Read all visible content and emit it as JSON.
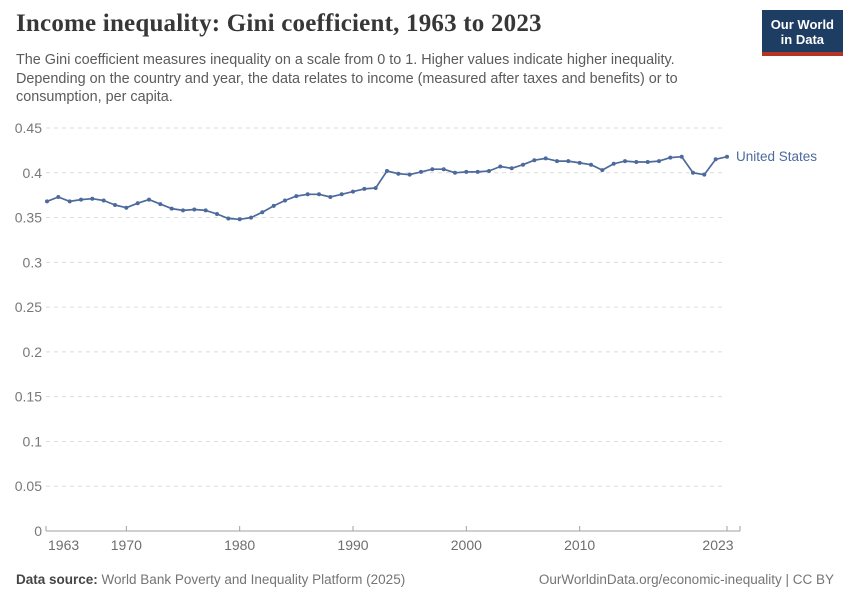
{
  "header": {
    "title": "Income inequality: Gini coefficient, 1963 to 2023",
    "subtitle": "The Gini coefficient measures inequality on a scale from 0 to 1. Higher values indicate higher inequality. Depending on the country and year, the data relates to income (measured after taxes and benefits) or to consumption, per capita.",
    "logo": {
      "line1": "Our World",
      "line2": "in Data"
    }
  },
  "footer": {
    "source_label": "Data source:",
    "source_text": "World Bank Poverty and Inequality Platform (2025)",
    "right_text": "OurWorldinData.org/economic-inequality | CC BY"
  },
  "colors": {
    "line": "#4c6a9c",
    "grid": "#dcdcdc",
    "axis": "#a1a1a1",
    "tick_label": "#6e6e6e",
    "y_label": "#787878",
    "logo_bg": "#1d3d63",
    "logo_red": "#b63425"
  },
  "chart_data": {
    "type": "line",
    "title": "Income inequality: Gini coefficient, 1963 to 2023",
    "xlabel": "",
    "ylabel": "Gini coefficient",
    "xlim": [
      1963,
      2023
    ],
    "ylim": [
      0,
      0.45
    ],
    "grid": "horizontal-dashed",
    "legend_position": "end-of-line",
    "x_ticks": [
      1963,
      1970,
      1980,
      1990,
      2000,
      2010,
      2023
    ],
    "y_ticks": [
      0,
      0.05,
      0.1,
      0.15,
      0.2,
      0.25,
      0.3,
      0.35,
      0.4,
      0.45
    ],
    "series": [
      {
        "name": "United States",
        "x": [
          1963,
          1964,
          1965,
          1966,
          1967,
          1968,
          1969,
          1970,
          1971,
          1972,
          1973,
          1974,
          1975,
          1976,
          1977,
          1978,
          1979,
          1980,
          1981,
          1982,
          1983,
          1984,
          1985,
          1986,
          1987,
          1988,
          1989,
          1990,
          1991,
          1992,
          1993,
          1994,
          1995,
          1996,
          1997,
          1998,
          1999,
          2000,
          2001,
          2002,
          2003,
          2004,
          2005,
          2006,
          2007,
          2008,
          2009,
          2010,
          2011,
          2012,
          2013,
          2014,
          2015,
          2016,
          2017,
          2018,
          2019,
          2020,
          2021,
          2022,
          2023
        ],
        "values": [
          0.368,
          0.373,
          0.368,
          0.37,
          0.371,
          0.369,
          0.364,
          0.361,
          0.366,
          0.37,
          0.365,
          0.36,
          0.358,
          0.359,
          0.358,
          0.354,
          0.349,
          0.348,
          0.35,
          0.356,
          0.363,
          0.369,
          0.374,
          0.376,
          0.376,
          0.373,
          0.376,
          0.379,
          0.382,
          0.383,
          0.402,
          0.399,
          0.398,
          0.401,
          0.404,
          0.404,
          0.4,
          0.401,
          0.401,
          0.402,
          0.407,
          0.405,
          0.409,
          0.414,
          0.416,
          0.413,
          0.413,
          0.411,
          0.409,
          0.403,
          0.41,
          0.413,
          0.412,
          0.412,
          0.413,
          0.417,
          0.418,
          0.4,
          0.398,
          0.415,
          0.418
        ]
      }
    ]
  }
}
